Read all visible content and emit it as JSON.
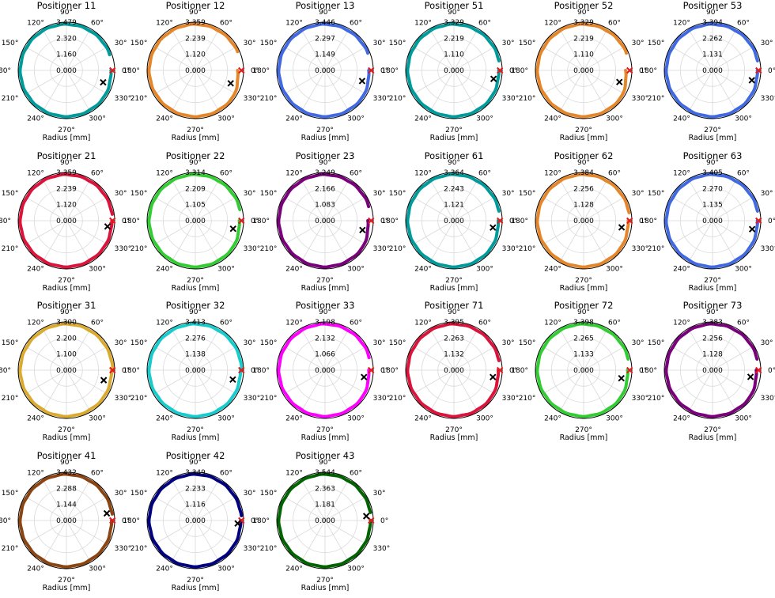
{
  "figure": {
    "rtick_angle_deg": 0,
    "angle_labels": [
      "0°",
      "30°",
      "60°",
      "90°",
      "120°",
      "150°",
      "180°",
      "210°",
      "240°",
      "270°",
      "300°",
      "330°"
    ],
    "red_marker_angle_deg": 0,
    "red_marker_color": "#e41a1c",
    "black_marker_color": "#000000",
    "grid_color": "#d9d9d9"
  },
  "chart_data": [
    {
      "type": "polar",
      "title": "Positioner 11",
      "xlabel": "Radius [mm]",
      "color": "#009b9b",
      "rmax": 3.479,
      "rticks": [
        "0.000",
        "1.160",
        "2.320",
        "3.479"
      ],
      "gap_deg": [
        0,
        20
      ],
      "start_offset": 0.3,
      "black_marker": {
        "angle_deg": -18,
        "r_frac": 0.8
      }
    },
    {
      "type": "polar",
      "title": "Positioner 12",
      "xlabel": "Radius [mm]",
      "color": "#e6862a",
      "rmax": 3.359,
      "rticks": [
        "0.000",
        "1.120",
        "2.239",
        "3.359"
      ],
      "gap_deg": [
        0,
        24
      ],
      "start_offset": 0.7,
      "black_marker": {
        "angle_deg": -20,
        "r_frac": 0.78
      }
    },
    {
      "type": "polar",
      "title": "Positioner 13",
      "xlabel": "Radius [mm]",
      "color": "#4169e1",
      "rmax": 3.446,
      "rticks": [
        "0.000",
        "1.149",
        "2.297",
        "3.446"
      ],
      "gap_deg": [
        0,
        22
      ],
      "start_offset": 0.45,
      "black_marker": {
        "angle_deg": -16,
        "r_frac": 0.8
      }
    },
    {
      "type": "polar",
      "title": "Positioner 51",
      "xlabel": "Radius [mm]",
      "color": "#009b9b",
      "rmax": 3.329,
      "rticks": [
        "0.000",
        "1.110",
        "2.219",
        "3.329"
      ],
      "gap_deg": [
        0,
        12
      ],
      "start_offset": 0.25,
      "black_marker": {
        "angle_deg": -12,
        "r_frac": 0.84
      }
    },
    {
      "type": "polar",
      "title": "Positioner 52",
      "xlabel": "Radius [mm]",
      "color": "#e6862a",
      "rmax": 3.329,
      "rticks": [
        "0.000",
        "1.110",
        "2.219",
        "3.329"
      ],
      "gap_deg": [
        0,
        22
      ],
      "start_offset": 0.75,
      "black_marker": {
        "angle_deg": -18,
        "r_frac": 0.78
      }
    },
    {
      "type": "polar",
      "title": "Positioner 53",
      "xlabel": "Radius [mm]",
      "color": "#4169e1",
      "rmax": 3.394,
      "rticks": [
        "0.000",
        "1.131",
        "2.262",
        "3.394"
      ],
      "gap_deg": [
        0,
        12
      ],
      "start_offset": 0.25,
      "black_marker": {
        "angle_deg": -14,
        "r_frac": 0.84
      }
    },
    {
      "type": "polar",
      "title": "Positioner 21",
      "xlabel": "Radius [mm]",
      "color": "#dc143c",
      "rmax": 3.359,
      "rticks": [
        "0.000",
        "1.120",
        "2.239",
        "3.359"
      ],
      "gap_deg": [
        0,
        8
      ],
      "start_offset": 0.15,
      "black_marker": {
        "angle_deg": -8,
        "r_frac": 0.86
      }
    },
    {
      "type": "polar",
      "title": "Positioner 22",
      "xlabel": "Radius [mm]",
      "color": "#32cd32",
      "rmax": 3.314,
      "rticks": [
        "0.000",
        "1.105",
        "2.209",
        "3.314"
      ],
      "gap_deg": [
        0,
        14
      ],
      "start_offset": 0.4,
      "black_marker": {
        "angle_deg": -12,
        "r_frac": 0.8
      }
    },
    {
      "type": "polar",
      "title": "Positioner 23",
      "xlabel": "Radius [mm]",
      "color": "#7b007b",
      "rmax": 3.249,
      "rticks": [
        "0.000",
        "1.083",
        "2.166",
        "3.249"
      ],
      "gap_deg": [
        0,
        18
      ],
      "start_offset": 0.6,
      "black_marker": {
        "angle_deg": -14,
        "r_frac": 0.8
      }
    },
    {
      "type": "polar",
      "title": "Positioner 61",
      "xlabel": "Radius [mm]",
      "color": "#009b9b",
      "rmax": 3.364,
      "rticks": [
        "0.000",
        "1.121",
        "2.243",
        "3.364"
      ],
      "gap_deg": [
        0,
        12
      ],
      "start_offset": 0.35,
      "black_marker": {
        "angle_deg": -10,
        "r_frac": 0.82
      }
    },
    {
      "type": "polar",
      "title": "Positioner 62",
      "xlabel": "Radius [mm]",
      "color": "#e6862a",
      "rmax": 3.384,
      "rticks": [
        "0.000",
        "1.128",
        "2.256",
        "3.384"
      ],
      "gap_deg": [
        0,
        10
      ],
      "start_offset": 0.3,
      "black_marker": {
        "angle_deg": -10,
        "r_frac": 0.8
      }
    },
    {
      "type": "polar",
      "title": "Positioner 63",
      "xlabel": "Radius [mm]",
      "color": "#4169e1",
      "rmax": 3.405,
      "rticks": [
        "0.000",
        "1.135",
        "2.270",
        "3.405"
      ],
      "gap_deg": [
        0,
        12
      ],
      "start_offset": 0.25,
      "black_marker": {
        "angle_deg": -12,
        "r_frac": 0.84
      }
    },
    {
      "type": "polar",
      "title": "Positioner 31",
      "xlabel": "Radius [mm]",
      "color": "#dbab2f",
      "rmax": 3.3,
      "rticks": [
        "0.000",
        "1.100",
        "2.200",
        "3.300"
      ],
      "gap_deg": [
        0,
        0
      ],
      "start_offset": 0.2,
      "black_marker": {
        "angle_deg": -15,
        "r_frac": 0.8
      }
    },
    {
      "type": "polar",
      "title": "Positioner 32",
      "xlabel": "Radius [mm]",
      "color": "#17cccc",
      "rmax": 3.413,
      "rticks": [
        "0.000",
        "1.138",
        "2.276",
        "3.413"
      ],
      "gap_deg": [
        0,
        0
      ],
      "start_offset": 0.2,
      "black_marker": {
        "angle_deg": -14,
        "r_frac": 0.8
      }
    },
    {
      "type": "polar",
      "title": "Positioner 33",
      "xlabel": "Radius [mm]",
      "color": "#ff00ff",
      "rmax": 3.198,
      "rticks": [
        "0.000",
        "1.066",
        "2.132",
        "3.198"
      ],
      "gap_deg": [
        0,
        16
      ],
      "start_offset": 0.45,
      "black_marker": {
        "angle_deg": -10,
        "r_frac": 0.82
      }
    },
    {
      "type": "polar",
      "title": "Positioner 71",
      "xlabel": "Radius [mm]",
      "color": "#dc143c",
      "rmax": 3.395,
      "rticks": [
        "0.000",
        "1.132",
        "2.263",
        "3.395"
      ],
      "gap_deg": [
        0,
        12
      ],
      "start_offset": 0.35,
      "black_marker": {
        "angle_deg": -10,
        "r_frac": 0.82
      }
    },
    {
      "type": "polar",
      "title": "Positioner 72",
      "xlabel": "Radius [mm]",
      "color": "#32cd32",
      "rmax": 3.398,
      "rticks": [
        "0.000",
        "1.133",
        "2.265",
        "3.398"
      ],
      "gap_deg": [
        0,
        14
      ],
      "start_offset": 0.4,
      "black_marker": {
        "angle_deg": -12,
        "r_frac": 0.8
      }
    },
    {
      "type": "polar",
      "title": "Positioner 73",
      "xlabel": "Radius [mm]",
      "color": "#7b007b",
      "rmax": 3.383,
      "rticks": [
        "0.000",
        "1.128",
        "2.256",
        "3.383"
      ],
      "gap_deg": [
        0,
        14
      ],
      "start_offset": 0.45,
      "black_marker": {
        "angle_deg": -10,
        "r_frac": 0.8
      }
    },
    {
      "type": "polar",
      "title": "Positioner 41",
      "xlabel": "Radius [mm]",
      "color": "#8b4513",
      "rmax": 3.432,
      "rticks": [
        "0.000",
        "1.144",
        "2.288",
        "3.432"
      ],
      "gap_deg": [
        0,
        8
      ],
      "start_offset": 0.2,
      "black_marker": {
        "angle_deg": 10,
        "r_frac": 0.85
      }
    },
    {
      "type": "polar",
      "title": "Positioner 42",
      "xlabel": "Radius [mm]",
      "color": "#000080",
      "rmax": 3.349,
      "rticks": [
        "0.000",
        "1.116",
        "2.233",
        "3.349"
      ],
      "gap_deg": [
        0,
        6
      ],
      "start_offset": 0.15,
      "black_marker": {
        "angle_deg": -4,
        "r_frac": 0.88
      }
    },
    {
      "type": "polar",
      "title": "Positioner 43",
      "xlabel": "Radius [mm]",
      "color": "#006400",
      "rmax": 3.544,
      "rticks": [
        "0.000",
        "1.181",
        "2.363",
        "3.544"
      ],
      "gap_deg": [
        0,
        10
      ],
      "start_offset": 0.15,
      "black_marker": {
        "angle_deg": 6,
        "r_frac": 0.86
      }
    }
  ]
}
